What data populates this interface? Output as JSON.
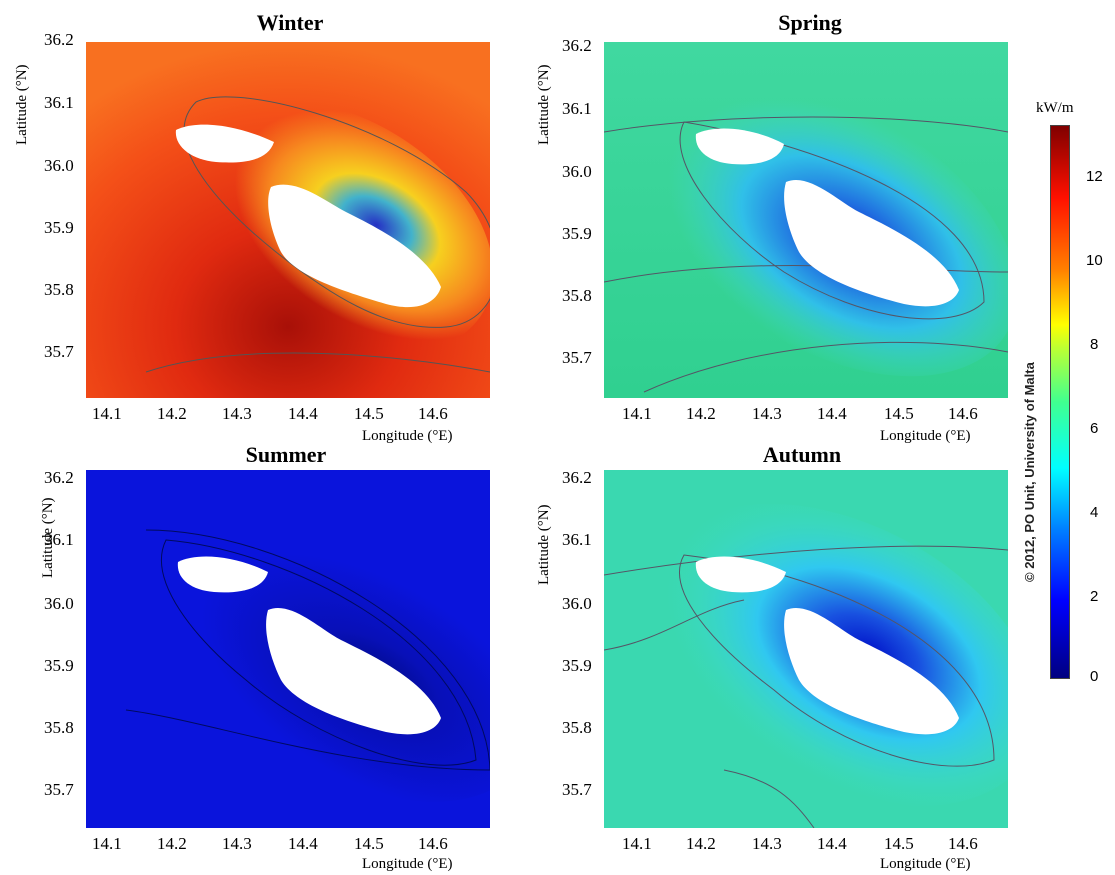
{
  "panels": [
    {
      "title": "Winter",
      "xlabel": "Longitude (°E)",
      "ylabel": "Latitude (°N)",
      "scheme": "winter"
    },
    {
      "title": "Spring",
      "xlabel": "Longitude (°E)",
      "ylabel": "Latitude (°N)",
      "scheme": "spring"
    },
    {
      "title": "Summer",
      "xlabel": "Longitude (°E)",
      "ylabel": "Latitude (°N)",
      "scheme": "summer"
    },
    {
      "title": "Autumn",
      "xlabel": "Longitude (°E)",
      "ylabel": "Latitude (°N)",
      "scheme": "autumn"
    }
  ],
  "x_ticks": [
    "14.1",
    "14.2",
    "14.3",
    "14.4",
    "14.5",
    "14.6"
  ],
  "y_ticks": [
    "36.2",
    "36.1",
    "36.0",
    "35.9",
    "35.8",
    "35.7"
  ],
  "colorbar": {
    "unit": "kW/m",
    "ticks": [
      "12",
      "10",
      "8",
      "6",
      "4",
      "2",
      "0"
    ],
    "range": [
      0,
      13
    ]
  },
  "credit": "© 2012, PO Unit, University of Malta",
  "colors": {
    "land": "#ffffff",
    "winter_sea": "#f03c14",
    "spring_sea": "#3ad6a8",
    "summer_sea": "#0a14dc",
    "autumn_sea": "#3ad6b0"
  }
}
